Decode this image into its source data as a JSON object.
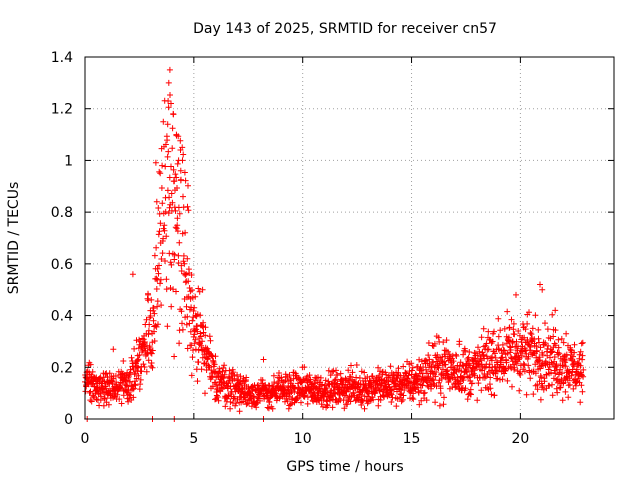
{
  "chart_data": {
    "type": "scatter",
    "title": "Day 143 of 2025, SRMTID for receiver cn57",
    "xlabel": "GPS time / hours",
    "ylabel": "SRMTID / TECUs",
    "xlim": [
      0,
      24.3
    ],
    "ylim": [
      0,
      1.4
    ],
    "grid": true,
    "marker": "+",
    "series_color": "#ff0000",
    "xticks": [
      0,
      5,
      10,
      15,
      20
    ],
    "xtick_labels": [
      "0",
      "5",
      "10",
      "15",
      "20"
    ],
    "yticks": [
      0,
      0.2,
      0.4,
      0.6,
      0.8,
      1.0,
      1.2,
      1.4
    ],
    "ytick_labels": [
      "0",
      "0.2",
      "0.4",
      "0.6",
      "0.8",
      "1",
      "1.2",
      "1.4"
    ],
    "envelope": {
      "x": [
        0.0,
        0.5,
        1.0,
        1.5,
        2.0,
        2.5,
        3.0,
        3.2,
        3.5,
        3.8,
        4.0,
        4.3,
        4.6,
        5.0,
        5.3,
        5.6,
        6.0,
        6.5,
        7.0,
        7.5,
        8.0,
        8.5,
        9.0,
        10.0,
        11.0,
        12.0,
        13.0,
        14.0,
        15.0,
        15.5,
        16.0,
        16.5,
        17.0,
        17.5,
        18.0,
        18.5,
        19.0,
        19.5,
        20.0,
        20.5,
        21.0,
        21.5,
        22.0,
        22.5,
        22.9
      ],
      "y": [
        0.15,
        0.13,
        0.12,
        0.12,
        0.15,
        0.22,
        0.32,
        0.45,
        0.6,
        0.75,
        0.7,
        0.6,
        0.45,
        0.34,
        0.3,
        0.22,
        0.16,
        0.13,
        0.12,
        0.1,
        0.1,
        0.1,
        0.11,
        0.12,
        0.11,
        0.12,
        0.12,
        0.13,
        0.14,
        0.16,
        0.19,
        0.2,
        0.19,
        0.18,
        0.19,
        0.22,
        0.24,
        0.25,
        0.27,
        0.25,
        0.25,
        0.23,
        0.21,
        0.19,
        0.18
      ]
    },
    "highlights": [
      {
        "x": 3.9,
        "y": 1.35
      },
      {
        "x": 3.85,
        "y": 1.3
      },
      {
        "x": 3.95,
        "y": 1.22
      },
      {
        "x": 4.05,
        "y": 1.18
      },
      {
        "x": 3.8,
        "y": 1.14
      },
      {
        "x": 4.2,
        "y": 1.1
      },
      {
        "x": 4.3,
        "y": 1.0
      },
      {
        "x": 4.4,
        "y": 0.96
      },
      {
        "x": 4.1,
        "y": 0.92
      },
      {
        "x": 3.3,
        "y": 0.84
      },
      {
        "x": 4.5,
        "y": 0.86
      },
      {
        "x": 4.6,
        "y": 0.72
      },
      {
        "x": 2.2,
        "y": 0.56
      },
      {
        "x": 4.7,
        "y": 0.62
      },
      {
        "x": 5.4,
        "y": 0.5
      },
      {
        "x": 2.9,
        "y": 0.48
      },
      {
        "x": 19.8,
        "y": 0.48
      },
      {
        "x": 20.9,
        "y": 0.52
      },
      {
        "x": 21.0,
        "y": 0.5
      },
      {
        "x": 21.6,
        "y": 0.42
      },
      {
        "x": 22.1,
        "y": 0.33
      },
      {
        "x": 1.3,
        "y": 0.27
      },
      {
        "x": 8.2,
        "y": 0.23
      },
      {
        "x": 17.2,
        "y": 0.3
      },
      {
        "x": 0.1,
        "y": 0.0
      },
      {
        "x": 3.1,
        "y": 0.0
      },
      {
        "x": 4.1,
        "y": 0.0
      },
      {
        "x": 8.2,
        "y": 0.0
      },
      {
        "x": 7.1,
        "y": 0.03
      }
    ]
  }
}
